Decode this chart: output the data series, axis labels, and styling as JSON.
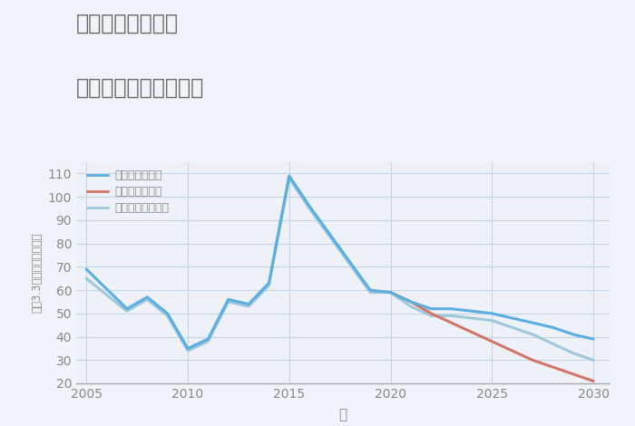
{
  "title_line1": "三重県津市森町の",
  "title_line2": "中古戸建ての価格推移",
  "xlabel": "年",
  "ylabel": "坪（3.3㎡）単価（万円）",
  "ylim": [
    20,
    115
  ],
  "yticks": [
    20,
    30,
    40,
    50,
    60,
    70,
    80,
    90,
    100,
    110
  ],
  "xlim": [
    2004.5,
    2030.8
  ],
  "xticks": [
    2005,
    2010,
    2015,
    2020,
    2025,
    2030
  ],
  "background_color": "#f0f4fa",
  "plot_background": "#eef2f8",
  "grid_color": "#c5d5e8",
  "scenarios": {
    "good": {
      "label": "グッドシナリオ",
      "color": "#5baee0",
      "linewidth": 2.2,
      "years": [
        2005,
        2007,
        2008,
        2009,
        2010,
        2011,
        2012,
        2013,
        2014,
        2015,
        2016,
        2019,
        2020,
        2021,
        2022,
        2023,
        2024,
        2025,
        2026,
        2027,
        2028,
        2029,
        2030
      ],
      "values": [
        69,
        52,
        57,
        50,
        35,
        39,
        56,
        54,
        63,
        109,
        96,
        60,
        59,
        55,
        52,
        52,
        51,
        50,
        48,
        46,
        44,
        41,
        39
      ]
    },
    "bad": {
      "label": "バッドシナリオ",
      "color": "#d4756b",
      "linewidth": 2.2,
      "years": [
        2020,
        2021,
        2022,
        2023,
        2024,
        2025,
        2026,
        2027,
        2028,
        2029,
        2030
      ],
      "values": [
        59,
        55,
        50,
        46,
        42,
        38,
        34,
        30,
        27,
        24,
        21
      ]
    },
    "normal": {
      "label": "ノーマルシナリオ",
      "color": "#a0c8d8",
      "linewidth": 2.2,
      "years": [
        2005,
        2007,
        2008,
        2009,
        2010,
        2011,
        2012,
        2013,
        2014,
        2015,
        2016,
        2019,
        2020,
        2021,
        2022,
        2023,
        2024,
        2025,
        2026,
        2027,
        2028,
        2029,
        2030
      ],
      "values": [
        65,
        51,
        56,
        49,
        34,
        38,
        55,
        53,
        62,
        108,
        95,
        59,
        59,
        53,
        49,
        49,
        48,
        47,
        44,
        41,
        37,
        33,
        30
      ]
    }
  },
  "legend_labels": [
    "グッドシナリオ",
    "バッドシナリオ",
    "ノーマルシナリオ"
  ],
  "legend_colors": [
    "#5baee0",
    "#d4756b",
    "#a0c8d8"
  ],
  "title_color": "#666666",
  "axis_color": "#aaaaaa",
  "tick_color": "#888888"
}
